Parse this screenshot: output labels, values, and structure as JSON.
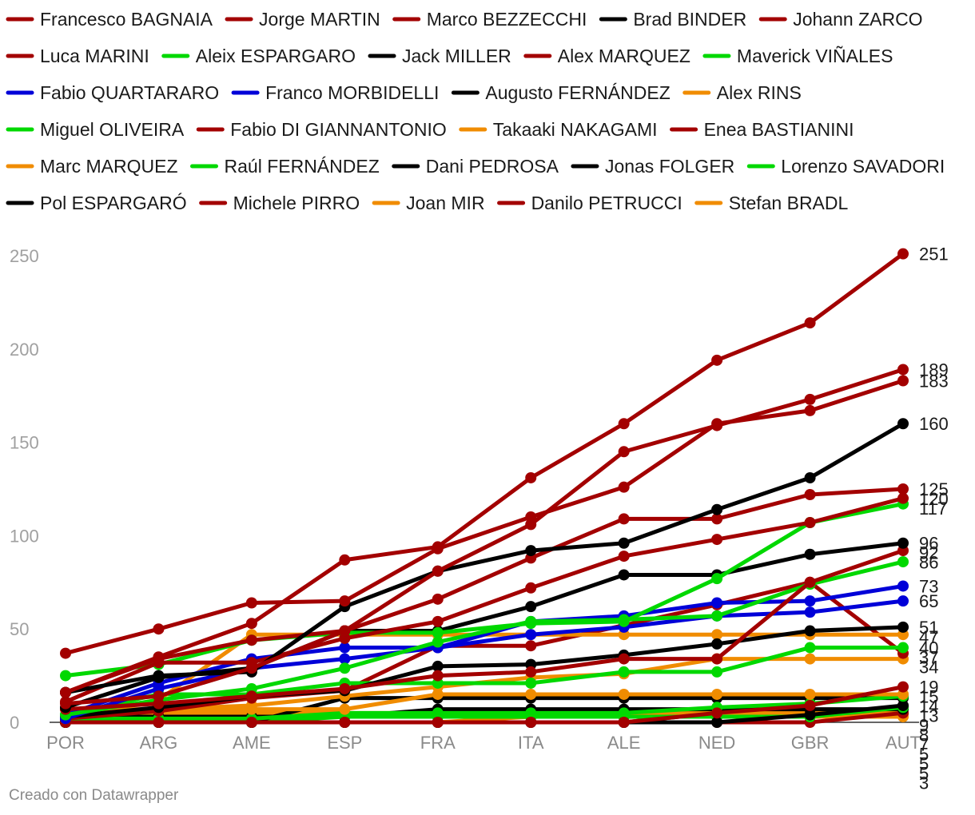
{
  "chart_data": {
    "type": "line",
    "title": "",
    "xlabel": "",
    "ylabel": "",
    "categories": [
      "POR",
      "ARG",
      "AME",
      "ESP",
      "FRA",
      "ITA",
      "ALE",
      "NED",
      "GBR",
      "AUT"
    ],
    "ylim": [
      0,
      250
    ],
    "yticks": [
      0,
      50,
      100,
      150,
      200,
      250
    ],
    "grid": false,
    "legend_position": "top",
    "colors": {
      "red": "#a30000",
      "black": "#000000",
      "green": "#00d800",
      "blue": "#0000d8",
      "orange": "#f08c00"
    },
    "series": [
      {
        "name": "Francesco BAGNAIA",
        "color": "#a30000",
        "values": [
          16,
          35,
          53,
          87,
          94,
          131,
          160,
          194,
          214,
          251
        ]
      },
      {
        "name": "Jorge MARTIN",
        "color": "#a30000",
        "values": [
          10,
          14,
          29,
          49,
          81,
          106,
          145,
          159,
          173,
          189
        ]
      },
      {
        "name": "Marco BEZZECCHI",
        "color": "#a30000",
        "values": [
          37,
          50,
          64,
          65,
          93,
          110,
          126,
          160,
          167,
          183
        ]
      },
      {
        "name": "Brad BINDER",
        "color": "#000000",
        "values": [
          16,
          25,
          27,
          62,
          81,
          92,
          96,
          114,
          131,
          160
        ]
      },
      {
        "name": "Johann ZARCO",
        "color": "#a30000",
        "values": [
          11,
          32,
          32,
          45,
          54,
          72,
          89,
          98,
          107,
          120
        ]
      },
      {
        "name": "Luca MARINI",
        "color": "#a30000",
        "values": [
          16,
          34,
          44,
          49,
          66,
          88,
          109,
          109,
          122,
          125
        ]
      },
      {
        "name": "Aleix ESPARGARO",
        "color": "#00d800",
        "values": [
          25,
          31,
          44,
          48,
          48,
          53,
          54,
          77,
          107,
          117
        ]
      },
      {
        "name": "Jack MILLER",
        "color": "#000000",
        "values": [
          8,
          24,
          29,
          49,
          49,
          62,
          79,
          79,
          90,
          96
        ]
      },
      {
        "name": "Alex MARQUEZ",
        "color": "#a30000",
        "values": [
          7,
          10,
          14,
          18,
          25,
          27,
          34,
          34,
          75,
          92
        ]
      },
      {
        "name": "Maverick VIÑALES",
        "color": "#00d800",
        "values": [
          4,
          12,
          18,
          29,
          43,
          54,
          55,
          57,
          74,
          86
        ]
      },
      {
        "name": "Fabio QUARTARARO",
        "color": "#0000d8",
        "values": [
          4,
          21,
          34,
          40,
          40,
          54,
          57,
          64,
          65,
          73
        ]
      },
      {
        "name": "Franco MORBIDELLI",
        "color": "#0000d8",
        "values": [
          2,
          18,
          29,
          34,
          40,
          47,
          51,
          57,
          59,
          65
        ]
      },
      {
        "name": "Augusto FERNÁNDEZ",
        "color": "#000000",
        "values": [
          3,
          8,
          14,
          17,
          30,
          31,
          36,
          42,
          49,
          51
        ]
      },
      {
        "name": "Alex RINS",
        "color": "#f08c00",
        "values": [
          3,
          12,
          47,
          47,
          47,
          47,
          47,
          47,
          47,
          47
        ]
      },
      {
        "name": "Miguel OLIVEIRA",
        "color": "#00d800",
        "values": [
          4,
          15,
          15,
          21,
          21,
          21,
          27,
          27,
          40,
          40
        ]
      },
      {
        "name": "Fabio DI GIANNANTONIO",
        "color": "#a30000",
        "values": [
          2,
          6,
          13,
          17,
          41,
          41,
          52,
          63,
          75,
          37
        ]
      },
      {
        "name": "Takaaki NAKAGAMI",
        "color": "#f08c00",
        "values": [
          2,
          7,
          9,
          14,
          19,
          24,
          26,
          34,
          34,
          34
        ]
      },
      {
        "name": "Enea BASTIANINI",
        "color": "#a30000",
        "values": [
          0,
          0,
          0,
          0,
          0,
          0,
          0,
          5,
          9,
          19
        ]
      },
      {
        "name": "Marc MARQUEZ",
        "color": "#f08c00",
        "values": [
          7,
          7,
          7,
          7,
          15,
          15,
          15,
          15,
          15,
          15
        ]
      },
      {
        "name": "Raúl FERNÁNDEZ",
        "color": "#00d800",
        "values": [
          2,
          2,
          2,
          5,
          5,
          5,
          5,
          8,
          10,
          14
        ]
      },
      {
        "name": "Dani PEDROSA",
        "color": "#000000",
        "values": [
          0,
          0,
          0,
          13,
          13,
          13,
          13,
          13,
          13,
          13
        ]
      },
      {
        "name": "Jonas FOLGER",
        "color": "#000000",
        "values": [
          0,
          0,
          0,
          0,
          0,
          0,
          0,
          0,
          4,
          9
        ]
      },
      {
        "name": "Lorenzo SAVADORI",
        "color": "#00d800",
        "values": [
          0,
          0,
          0,
          3,
          3,
          3,
          3,
          3,
          3,
          8
        ]
      },
      {
        "name": "Pol ESPARGARÓ",
        "color": "#000000",
        "values": [
          3,
          3,
          3,
          3,
          7,
          7,
          7,
          7,
          7,
          7
        ]
      },
      {
        "name": "Michele PIRRO",
        "color": "#a30000",
        "values": [
          0,
          0,
          0,
          0,
          0,
          0,
          0,
          0,
          0,
          5
        ]
      },
      {
        "name": "Joan MIR",
        "color": "#f08c00",
        "values": [
          0,
          5,
          5,
          5,
          5,
          5,
          5,
          5,
          5,
          5
        ]
      },
      {
        "name": "Danilo PETRUCCI",
        "color": "#a30000",
        "values": [
          0,
          0,
          0,
          0,
          0,
          0,
          0,
          5,
          5,
          5
        ]
      },
      {
        "name": "Stefan BRADL",
        "color": "#f08c00",
        "values": [
          0,
          0,
          0,
          0,
          0,
          3,
          3,
          3,
          3,
          3
        ]
      }
    ],
    "end_labels": [
      "251",
      "189",
      "183",
      "160",
      "125",
      "120",
      "117",
      "96",
      "92",
      "86",
      "73",
      "65",
      "51",
      "47",
      "40",
      "37",
      "34",
      "19",
      "15",
      "14",
      "13",
      "9",
      "8",
      "7",
      "5",
      "5",
      "5",
      "3"
    ]
  },
  "footer": {
    "credit": "Creado con Datawrapper"
  }
}
